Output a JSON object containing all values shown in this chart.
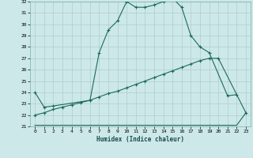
{
  "title": "",
  "xlabel": "Humidex (Indice chaleur)",
  "ylabel": "",
  "background_color": "#cde8e8",
  "grid_color": "#b0cccc",
  "line_color": "#1a6b5a",
  "xmin": -0.5,
  "xmax": 23.5,
  "ymin": 21.0,
  "ymax": 32.0,
  "line1_x": [
    0,
    1,
    2,
    6,
    7,
    8,
    9,
    10,
    11,
    12,
    13,
    14,
    15,
    16,
    17,
    18,
    19,
    21,
    22
  ],
  "line1_y": [
    24.0,
    22.7,
    22.8,
    23.3,
    27.5,
    29.5,
    30.3,
    32.0,
    31.5,
    31.5,
    31.7,
    32.0,
    32.3,
    31.5,
    29.0,
    28.0,
    27.5,
    23.7,
    23.8
  ],
  "line2_x": [
    0,
    1,
    2,
    3,
    4,
    5,
    6,
    7,
    8,
    9,
    10,
    11,
    12,
    13,
    14,
    15,
    16,
    17,
    18,
    19,
    20,
    23
  ],
  "line2_y": [
    22.0,
    22.2,
    22.5,
    22.7,
    22.9,
    23.1,
    23.3,
    23.6,
    23.9,
    24.1,
    24.4,
    24.7,
    25.0,
    25.3,
    25.6,
    25.9,
    26.2,
    26.5,
    26.8,
    27.0,
    27.0,
    22.2
  ],
  "line3_x": [
    0,
    1,
    2,
    3,
    4,
    5,
    6,
    7,
    8,
    9,
    10,
    11,
    12,
    13,
    14,
    15,
    16,
    17,
    18,
    19,
    20,
    21,
    22,
    23
  ],
  "line3_y": [
    21.1,
    21.1,
    21.1,
    21.1,
    21.1,
    21.1,
    21.1,
    21.1,
    21.1,
    21.1,
    21.1,
    21.1,
    21.1,
    21.1,
    21.1,
    21.1,
    21.1,
    21.1,
    21.1,
    21.1,
    21.1,
    21.1,
    21.1,
    22.2
  ],
  "yticks": [
    21,
    22,
    23,
    24,
    25,
    26,
    27,
    28,
    29,
    30,
    31,
    32
  ],
  "xticks": [
    0,
    1,
    2,
    3,
    4,
    5,
    6,
    7,
    8,
    9,
    10,
    11,
    12,
    13,
    14,
    15,
    16,
    17,
    18,
    19,
    20,
    21,
    22,
    23
  ]
}
